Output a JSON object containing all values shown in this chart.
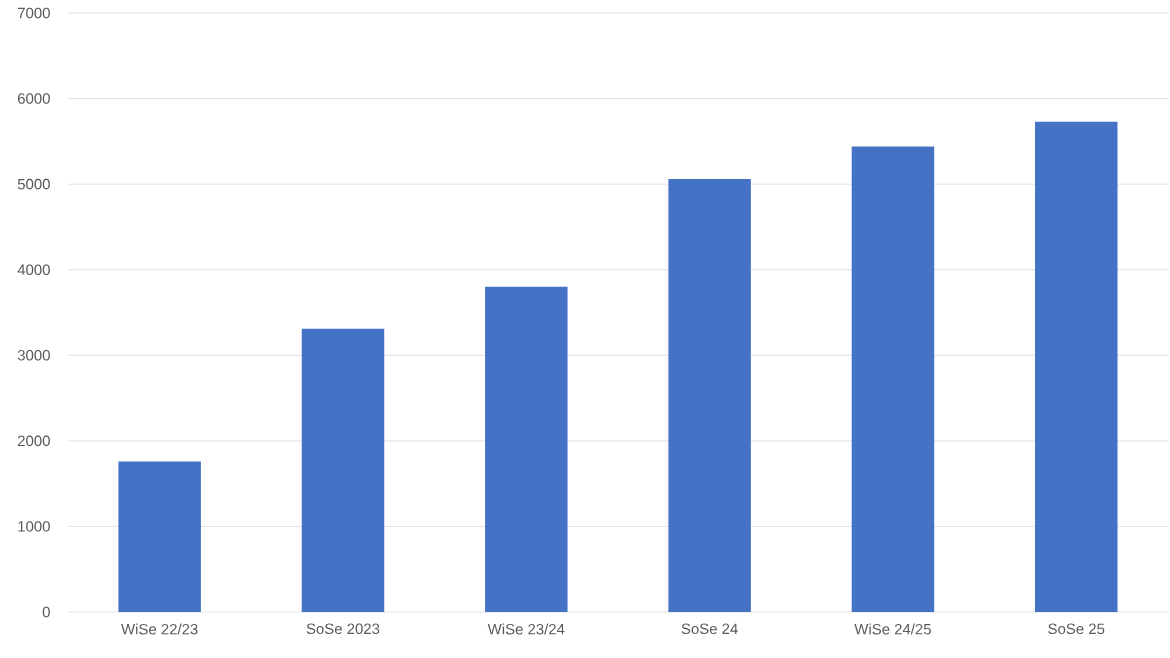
{
  "chart_data": {
    "type": "bar",
    "categories": [
      "WiSe 22/23",
      "SoSe 2023",
      "WiSe 23/24",
      "SoSe 24",
      "WiSe 24/25",
      "SoSe 25"
    ],
    "values": [
      1760,
      3310,
      3800,
      5060,
      5440,
      5730
    ],
    "color": "#4472c4",
    "ylim": [
      0,
      7000
    ],
    "yticks": [
      0,
      1000,
      2000,
      3000,
      4000,
      5000,
      6000,
      7000
    ],
    "grid": "y"
  }
}
